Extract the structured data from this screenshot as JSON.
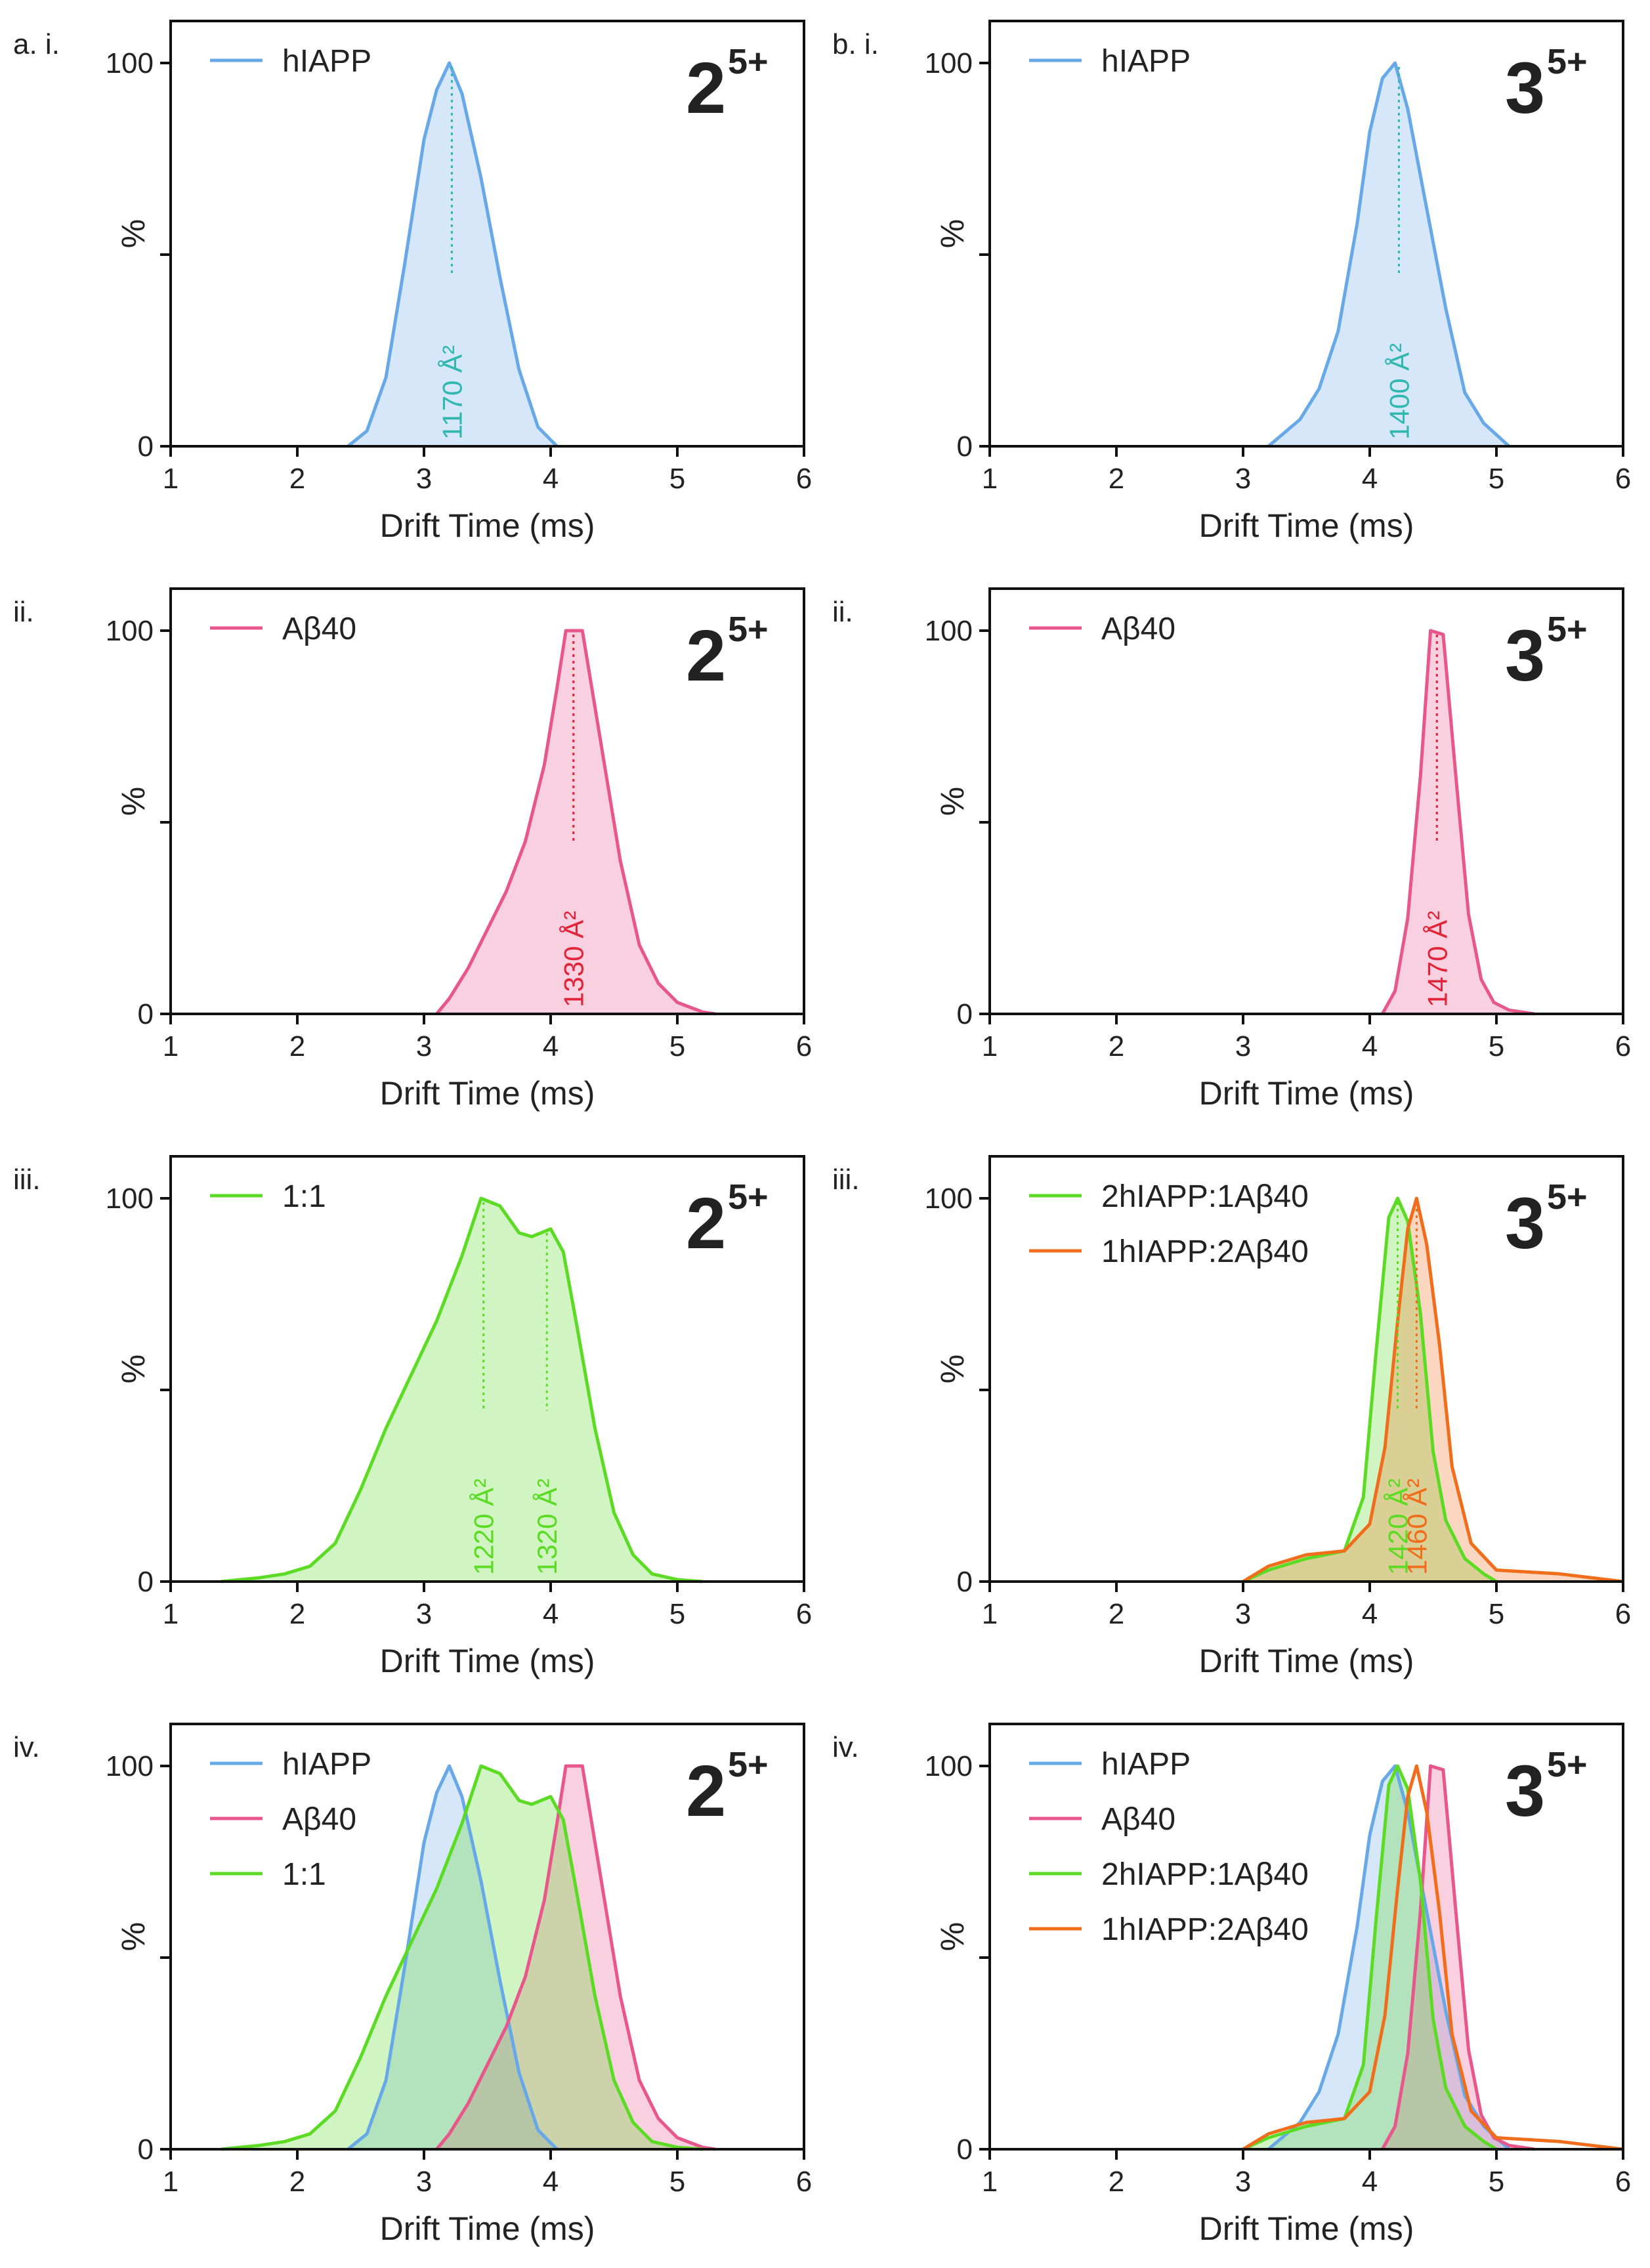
{
  "colors": {
    "hiapp": "#67a8e8",
    "abeta": "#e8578c",
    "mix": "#5bdb23",
    "orange": "#f06d1c",
    "ccs_hiapp": "#2fb7b0",
    "ccs_abeta": "#e2243a"
  },
  "chart_data": [
    {
      "id": "a-i",
      "type": "area",
      "panel_label": "a. i.",
      "species": "2",
      "species_charge": "5+",
      "xlabel": "Drift  Time  (ms)",
      "ylabel": "%",
      "xlim": [
        1,
        6
      ],
      "ylim": [
        0,
        100
      ],
      "xticks": [
        "1",
        "2",
        "3",
        "4",
        "5",
        "6"
      ],
      "yticks": [
        "0",
        "100"
      ],
      "ymid_tick": true,
      "series": [
        {
          "name": "hIAPP",
          "color": "hiapp",
          "fill": true,
          "x": [
            2.4,
            2.55,
            2.7,
            2.85,
            3.0,
            3.1,
            3.2,
            3.3,
            3.45,
            3.6,
            3.75,
            3.9,
            4.05
          ],
          "y": [
            0,
            4,
            18,
            48,
            80,
            93,
            100,
            92,
            70,
            44,
            20,
            5,
            0
          ]
        }
      ],
      "annotations": [
        {
          "x": 3.22,
          "y": 100,
          "text": "1170 Å²",
          "color": "ccs_hiapp"
        }
      ]
    },
    {
      "id": "b-i",
      "type": "area",
      "panel_label": "b. i.",
      "species": "3",
      "species_charge": "5+",
      "xlabel": "Drift  Time  (ms)",
      "ylabel": "%",
      "xlim": [
        1,
        6
      ],
      "ylim": [
        0,
        100
      ],
      "xticks": [
        "1",
        "2",
        "3",
        "4",
        "5",
        "6"
      ],
      "yticks": [
        "0",
        "100"
      ],
      "ymid_tick": true,
      "series": [
        {
          "name": "hIAPP",
          "color": "hiapp",
          "fill": true,
          "x": [
            3.2,
            3.45,
            3.6,
            3.75,
            3.9,
            4.0,
            4.1,
            4.2,
            4.3,
            4.45,
            4.6,
            4.75,
            4.9,
            5.1
          ],
          "y": [
            0,
            7,
            15,
            30,
            58,
            82,
            96,
            100,
            88,
            62,
            36,
            14,
            6,
            0
          ]
        }
      ],
      "annotations": [
        {
          "x": 4.23,
          "y": 100,
          "text": "1400 Å²",
          "color": "ccs_hiapp"
        }
      ]
    },
    {
      "id": "a-ii",
      "type": "area",
      "panel_label": "ii.",
      "species": "2",
      "species_charge": "5+",
      "xlabel": "Drift  Time  (ms)",
      "ylabel": "%",
      "xlim": [
        1,
        6
      ],
      "ylim": [
        0,
        100
      ],
      "xticks": [
        "1",
        "2",
        "3",
        "4",
        "5",
        "6"
      ],
      "yticks": [
        "0",
        "100"
      ],
      "ymid_tick": true,
      "series": [
        {
          "name": "Aβ40",
          "color": "abeta",
          "fill": true,
          "x": [
            3.1,
            3.2,
            3.35,
            3.5,
            3.65,
            3.8,
            3.95,
            4.05,
            4.12,
            4.25,
            4.4,
            4.55,
            4.7,
            4.85,
            5.0,
            5.2,
            5.3
          ],
          "y": [
            0,
            4,
            12,
            22,
            32,
            45,
            65,
            85,
            100,
            100,
            70,
            40,
            18,
            8,
            3,
            0.5,
            0
          ]
        }
      ],
      "annotations": [
        {
          "x": 4.18,
          "y": 100,
          "text": "1330 Å²",
          "color": "ccs_abeta"
        }
      ]
    },
    {
      "id": "b-ii",
      "type": "area",
      "panel_label": "ii.",
      "species": "3",
      "species_charge": "5+",
      "xlabel": "Drift  Time  (ms)",
      "ylabel": "%",
      "xlim": [
        1,
        6
      ],
      "ylim": [
        0,
        100
      ],
      "xticks": [
        "1",
        "2",
        "3",
        "4",
        "5",
        "6"
      ],
      "yticks": [
        "0",
        "100"
      ],
      "ymid_tick": true,
      "series": [
        {
          "name": "Aβ40",
          "color": "abeta",
          "fill": true,
          "x": [
            4.1,
            4.2,
            4.3,
            4.4,
            4.48,
            4.58,
            4.68,
            4.78,
            4.88,
            4.98,
            5.1,
            5.3
          ],
          "y": [
            0,
            6,
            25,
            62,
            100,
            99,
            62,
            26,
            9,
            3,
            1,
            0
          ]
        }
      ],
      "annotations": [
        {
          "x": 4.53,
          "y": 100,
          "text": "1470 Å²",
          "color": "ccs_abeta"
        }
      ]
    },
    {
      "id": "a-iii",
      "type": "area",
      "panel_label": "iii.",
      "species": "2",
      "species_charge": "5+",
      "xlabel": "Drift  Time  (ms)",
      "ylabel": "%",
      "xlim": [
        1,
        6
      ],
      "ylim": [
        0,
        100
      ],
      "xticks": [
        "1",
        "2",
        "3",
        "4",
        "5",
        "6"
      ],
      "yticks": [
        "0",
        "100"
      ],
      "ymid_tick": true,
      "series": [
        {
          "name": "1:1",
          "color": "mix",
          "fill": true,
          "x": [
            1.4,
            1.7,
            1.9,
            2.1,
            2.3,
            2.5,
            2.7,
            2.9,
            3.1,
            3.3,
            3.45,
            3.6,
            3.75,
            3.85,
            4.0,
            4.1,
            4.2,
            4.35,
            4.5,
            4.65,
            4.8,
            5.0,
            5.2
          ],
          "y": [
            0,
            1,
            2,
            4,
            10,
            24,
            40,
            54,
            68,
            85,
            100,
            98,
            91,
            90,
            92,
            86,
            68,
            40,
            18,
            7,
            2,
            0.5,
            0
          ]
        }
      ],
      "annotations": [
        {
          "x": 3.47,
          "y": 100,
          "text": "1220 Å²",
          "color": "mix"
        },
        {
          "x": 3.97,
          "y": 92,
          "text": "1320 Å²",
          "color": "mix"
        }
      ]
    },
    {
      "id": "b-iii",
      "type": "area",
      "panel_label": "iii.",
      "species": "3",
      "species_charge": "5+",
      "xlabel": "Drift  Time  (ms)",
      "ylabel": "%",
      "xlim": [
        1,
        6
      ],
      "ylim": [
        0,
        100
      ],
      "xticks": [
        "1",
        "2",
        "3",
        "4",
        "5",
        "6"
      ],
      "yticks": [
        "0",
        "100"
      ],
      "ymid_tick": true,
      "series": [
        {
          "name": "2hIAPP:1Aβ40",
          "color": "mix",
          "fill": true,
          "x": [
            3.0,
            3.2,
            3.5,
            3.8,
            3.95,
            4.05,
            4.15,
            4.22,
            4.3,
            4.4,
            4.5,
            4.6,
            4.75,
            4.9,
            5.0
          ],
          "y": [
            0,
            3,
            6,
            8,
            22,
            60,
            95,
            100,
            94,
            70,
            34,
            16,
            6,
            2,
            0
          ]
        },
        {
          "name": "1hIAPP:2Aβ40",
          "color": "orange",
          "fill": true,
          "x": [
            3.0,
            3.2,
            3.5,
            3.8,
            4.0,
            4.12,
            4.22,
            4.3,
            4.37,
            4.45,
            4.55,
            4.65,
            4.8,
            5.0,
            5.5,
            6.0
          ],
          "y": [
            0,
            4,
            7,
            8,
            15,
            35,
            68,
            92,
            100,
            88,
            62,
            30,
            10,
            3,
            2,
            0
          ]
        }
      ],
      "annotations": [
        {
          "x": 4.22,
          "y": 100,
          "text": "1420 Å²",
          "color": "mix"
        },
        {
          "x": 4.37,
          "y": 100,
          "text": "1460 Å²",
          "color": "orange"
        }
      ]
    },
    {
      "id": "a-iv",
      "type": "area",
      "panel_label": "iv.",
      "species": "2",
      "species_charge": "5+",
      "xlabel": "Drift  Time  (ms)",
      "ylabel": "%",
      "xlim": [
        1,
        6
      ],
      "ylim": [
        0,
        100
      ],
      "xticks": [
        "1",
        "2",
        "3",
        "4",
        "5",
        "6"
      ],
      "yticks": [
        "0",
        "100"
      ],
      "ymid_tick": true,
      "series": [
        {
          "name": "hIAPP",
          "color": "hiapp",
          "fill": true,
          "x": [
            2.4,
            2.55,
            2.7,
            2.85,
            3.0,
            3.1,
            3.2,
            3.3,
            3.45,
            3.6,
            3.75,
            3.9,
            4.05
          ],
          "y": [
            0,
            4,
            18,
            48,
            80,
            93,
            100,
            92,
            70,
            44,
            20,
            5,
            0
          ]
        },
        {
          "name": "Aβ40",
          "color": "abeta",
          "fill": true,
          "x": [
            3.1,
            3.2,
            3.35,
            3.5,
            3.65,
            3.8,
            3.95,
            4.05,
            4.12,
            4.25,
            4.4,
            4.55,
            4.7,
            4.85,
            5.0,
            5.2,
            5.3
          ],
          "y": [
            0,
            4,
            12,
            22,
            32,
            45,
            65,
            85,
            100,
            100,
            70,
            40,
            18,
            8,
            3,
            0.5,
            0
          ]
        },
        {
          "name": "1:1",
          "color": "mix",
          "fill": true,
          "x": [
            1.4,
            1.7,
            1.9,
            2.1,
            2.3,
            2.5,
            2.7,
            2.9,
            3.1,
            3.3,
            3.45,
            3.6,
            3.75,
            3.85,
            4.0,
            4.1,
            4.2,
            4.35,
            4.5,
            4.65,
            4.8,
            5.0,
            5.2
          ],
          "y": [
            0,
            1,
            2,
            4,
            10,
            24,
            40,
            54,
            68,
            85,
            100,
            98,
            91,
            90,
            92,
            86,
            68,
            40,
            18,
            7,
            2,
            0.5,
            0
          ]
        }
      ],
      "annotations": []
    },
    {
      "id": "b-iv",
      "type": "area",
      "panel_label": "iv.",
      "species": "3",
      "species_charge": "5+",
      "xlabel": "Drift  Time  (ms)",
      "ylabel": "%",
      "xlim": [
        1,
        6
      ],
      "ylim": [
        0,
        100
      ],
      "xticks": [
        "1",
        "2",
        "3",
        "4",
        "5",
        "6"
      ],
      "yticks": [
        "0",
        "100"
      ],
      "ymid_tick": true,
      "series": [
        {
          "name": "hIAPP",
          "color": "hiapp",
          "fill": true,
          "x": [
            3.2,
            3.45,
            3.6,
            3.75,
            3.9,
            4.0,
            4.1,
            4.2,
            4.3,
            4.45,
            4.6,
            4.75,
            4.9,
            5.1
          ],
          "y": [
            0,
            7,
            15,
            30,
            58,
            82,
            96,
            100,
            88,
            62,
            36,
            14,
            6,
            0
          ]
        },
        {
          "name": "Aβ40",
          "color": "abeta",
          "fill": true,
          "x": [
            4.1,
            4.2,
            4.3,
            4.4,
            4.48,
            4.58,
            4.68,
            4.78,
            4.88,
            4.98,
            5.1,
            5.3
          ],
          "y": [
            0,
            6,
            25,
            62,
            100,
            99,
            62,
            26,
            9,
            3,
            1,
            0
          ]
        },
        {
          "name": "2hIAPP:1Aβ40",
          "color": "mix",
          "fill": true,
          "x": [
            3.0,
            3.2,
            3.5,
            3.8,
            3.95,
            4.05,
            4.15,
            4.22,
            4.3,
            4.4,
            4.5,
            4.6,
            4.75,
            4.9,
            5.0
          ],
          "y": [
            0,
            3,
            6,
            8,
            22,
            60,
            95,
            100,
            94,
            70,
            34,
            16,
            6,
            2,
            0
          ]
        },
        {
          "name": "1hIAPP:2Aβ40",
          "color": "orange",
          "fill": false,
          "x": [
            3.0,
            3.2,
            3.5,
            3.8,
            4.0,
            4.12,
            4.22,
            4.3,
            4.37,
            4.45,
            4.55,
            4.65,
            4.8,
            5.0,
            5.5,
            6.0
          ],
          "y": [
            0,
            4,
            7,
            8,
            15,
            35,
            68,
            92,
            100,
            88,
            62,
            30,
            10,
            3,
            2,
            0
          ]
        }
      ],
      "annotations": []
    }
  ]
}
